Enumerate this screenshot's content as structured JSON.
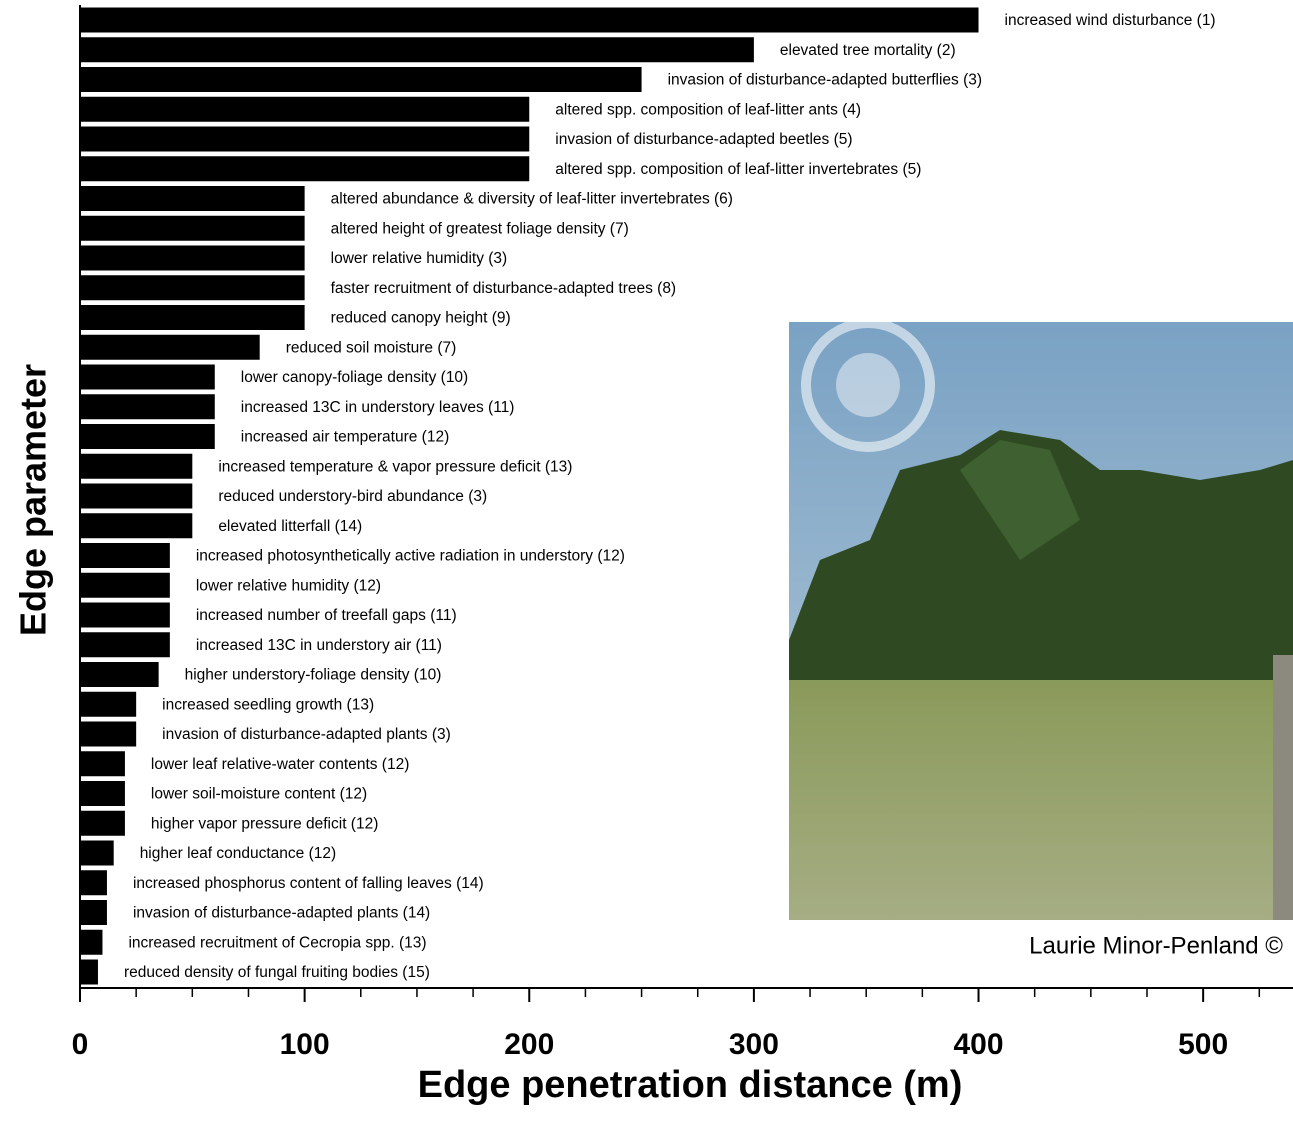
{
  "chart_data": {
    "type": "barh",
    "x_label": "Edge penetration distance (m)",
    "y_label": "Edge parameter",
    "categories": [
      "increased wind disturbance (1)",
      "elevated tree mortality (2)",
      "invasion of disturbance-adapted butterflies (3)",
      "altered spp. composition of leaf-litter ants (4)",
      "invasion of disturbance-adapted beetles (5)",
      "altered spp. composition of leaf-litter invertebrates  (5)",
      "altered abundance & diversity of leaf-litter invertebrates (6)",
      "altered height of greatest foliage density (7)",
      "lower relative humidity (3)",
      "faster recruitment of disturbance-adapted trees (8)",
      "reduced canopy height (9)",
      "reduced soil moisture (7)",
      "lower canopy-foliage density (10)",
      "increased 13C in understory leaves (11)",
      "increased air temperature (12)",
      "increased temperature & vapor pressure deficit (13)",
      "reduced understory-bird abundance (3)",
      "elevated litterfall (14)",
      "increased photosynthetically active radiation in understory (12)",
      "lower relative humidity (12)",
      "increased number of treefall gaps (11)",
      "increased 13C in understory air (11)",
      "higher understory-foliage density (10)",
      "increased seedling growth (13)",
      "invasion of disturbance-adapted plants (3)",
      "lower leaf relative-water contents (12)",
      "lower soil-moisture content (12)",
      "higher vapor pressure deficit (12)",
      "higher leaf conductance (12)",
      "increased phosphorus content of falling leaves (14)",
      "invasion of disturbance-adapted plants (14)",
      "increased recruitment of Cecropia spp. (13)",
      "reduced density of fungal fruiting bodies (15)"
    ],
    "values": [
      400,
      300,
      250,
      200,
      200,
      200,
      100,
      100,
      100,
      100,
      100,
      80,
      60,
      60,
      60,
      50,
      50,
      50,
      40,
      40,
      40,
      40,
      35,
      25,
      25,
      20,
      20,
      20,
      15,
      12,
      12,
      10,
      8
    ],
    "color": "#000000",
    "xlim": [
      0,
      540
    ],
    "xticks": [
      0,
      100,
      200,
      300,
      400,
      500
    ],
    "xminorticks": [
      25,
      50,
      75,
      125,
      150,
      175,
      225,
      250,
      275,
      325,
      350,
      375,
      425,
      450,
      475,
      525
    ],
    "photo_credit": "Laurie Minor-Penland ©"
  }
}
